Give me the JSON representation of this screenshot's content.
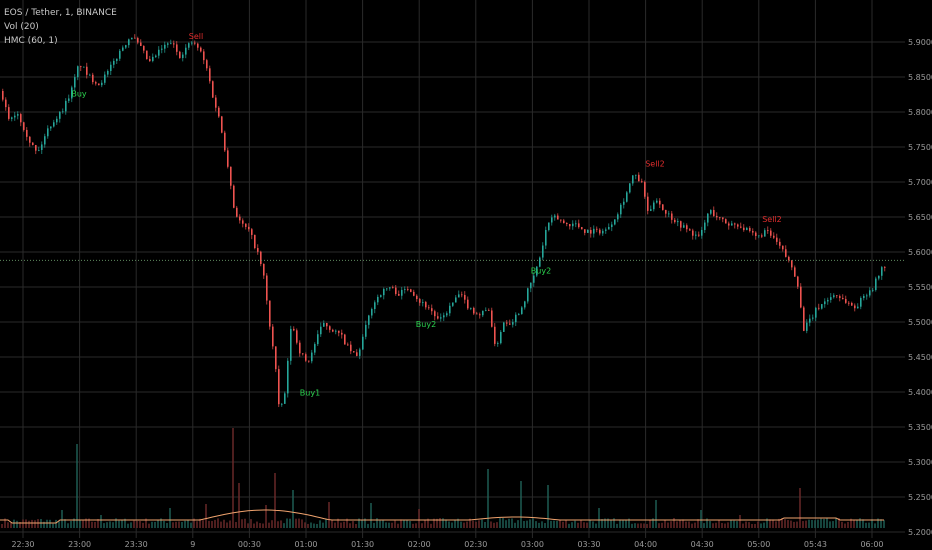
{
  "legend": {
    "symbol": "EOS / Tether, 1, BINANCE",
    "volume": "Vol (20)",
    "indicator": "HMC (60, 1)"
  },
  "colors": {
    "background": "#000000",
    "grid": "#2a2a2a",
    "up": "#26a69a",
    "down": "#ef5350",
    "buy_label": "#2bd24f",
    "sell_label": "#e12d2d",
    "vol_ma": "#f0a36e",
    "current_price_line": "#5f8a5f",
    "axis_text": "#9a9a9a"
  },
  "chart_data": {
    "type": "candlestick",
    "title": "",
    "y_ticks": [
      "5.9000",
      "5.8500",
      "5.8000",
      "5.7500",
      "5.7000",
      "5.6500",
      "5.6000",
      "5.5500",
      "5.5000",
      "5.4500",
      "5.4000",
      "5.3500",
      "5.3000",
      "5.2500",
      "5.2000"
    ],
    "ylim": [
      5.2,
      5.91
    ],
    "x_ticks": [
      "22:30",
      "23:00",
      "23:30",
      "9",
      "00:30",
      "01:00",
      "01:30",
      "02:00",
      "02:30",
      "03:00",
      "03:30",
      "04:00",
      "04:30",
      "05:00",
      "05:43",
      "06:00"
    ],
    "current_price": 5.588,
    "price_path": [
      [
        0,
        5.83
      ],
      [
        10,
        5.79
      ],
      [
        18,
        5.8
      ],
      [
        30,
        5.76
      ],
      [
        38,
        5.74
      ],
      [
        50,
        5.78
      ],
      [
        62,
        5.8
      ],
      [
        72,
        5.83
      ],
      [
        80,
        5.87
      ],
      [
        90,
        5.85
      ],
      [
        100,
        5.84
      ],
      [
        110,
        5.86
      ],
      [
        122,
        5.89
      ],
      [
        132,
        5.91
      ],
      [
        142,
        5.89
      ],
      [
        150,
        5.87
      ],
      [
        162,
        5.89
      ],
      [
        172,
        5.9
      ],
      [
        180,
        5.88
      ],
      [
        192,
        5.9
      ],
      [
        200,
        5.89
      ],
      [
        208,
        5.86
      ],
      [
        214,
        5.82
      ],
      [
        220,
        5.79
      ],
      [
        228,
        5.73
      ],
      [
        235,
        5.66
      ],
      [
        242,
        5.64
      ],
      [
        250,
        5.63
      ],
      [
        258,
        5.6
      ],
      [
        264,
        5.57
      ],
      [
        270,
        5.5
      ],
      [
        276,
        5.44
      ],
      [
        280,
        5.37
      ],
      [
        286,
        5.4
      ],
      [
        292,
        5.5
      ],
      [
        300,
        5.46
      ],
      [
        308,
        5.44
      ],
      [
        316,
        5.47
      ],
      [
        324,
        5.5
      ],
      [
        332,
        5.49
      ],
      [
        342,
        5.48
      ],
      [
        350,
        5.46
      ],
      [
        358,
        5.45
      ],
      [
        366,
        5.49
      ],
      [
        372,
        5.52
      ],
      [
        380,
        5.54
      ],
      [
        390,
        5.55
      ],
      [
        400,
        5.54
      ],
      [
        410,
        5.55
      ],
      [
        420,
        5.53
      ],
      [
        430,
        5.52
      ],
      [
        440,
        5.5
      ],
      [
        450,
        5.52
      ],
      [
        460,
        5.54
      ],
      [
        470,
        5.52
      ],
      [
        480,
        5.51
      ],
      [
        490,
        5.52
      ],
      [
        496,
        5.46
      ],
      [
        504,
        5.5
      ],
      [
        512,
        5.5
      ],
      [
        522,
        5.52
      ],
      [
        530,
        5.55
      ],
      [
        536,
        5.57
      ],
      [
        542,
        5.6
      ],
      [
        548,
        5.64
      ],
      [
        556,
        5.65
      ],
      [
        566,
        5.64
      ],
      [
        576,
        5.64
      ],
      [
        586,
        5.63
      ],
      [
        596,
        5.63
      ],
      [
        606,
        5.63
      ],
      [
        616,
        5.65
      ],
      [
        626,
        5.68
      ],
      [
        634,
        5.71
      ],
      [
        642,
        5.7
      ],
      [
        650,
        5.65
      ],
      [
        656,
        5.68
      ],
      [
        664,
        5.66
      ],
      [
        672,
        5.65
      ],
      [
        680,
        5.64
      ],
      [
        690,
        5.63
      ],
      [
        700,
        5.62
      ],
      [
        710,
        5.66
      ],
      [
        718,
        5.65
      ],
      [
        728,
        5.64
      ],
      [
        738,
        5.64
      ],
      [
        748,
        5.63
      ],
      [
        758,
        5.62
      ],
      [
        766,
        5.63
      ],
      [
        774,
        5.62
      ],
      [
        784,
        5.6
      ],
      [
        792,
        5.58
      ],
      [
        798,
        5.56
      ],
      [
        804,
        5.49
      ],
      [
        810,
        5.5
      ],
      [
        818,
        5.52
      ],
      [
        826,
        5.53
      ],
      [
        836,
        5.54
      ],
      [
        846,
        5.53
      ],
      [
        856,
        5.52
      ],
      [
        866,
        5.54
      ],
      [
        874,
        5.55
      ],
      [
        880,
        5.57
      ],
      [
        884,
        5.58
      ]
    ],
    "volume_peaks": [
      [
        24,
        0.05
      ],
      [
        40,
        0.09
      ],
      [
        62,
        0.18
      ],
      [
        76,
        0.84
      ],
      [
        100,
        0.13
      ],
      [
        140,
        0.07
      ],
      [
        170,
        0.2
      ],
      [
        205,
        0.24
      ],
      [
        232,
        1.0
      ],
      [
        238,
        0.45
      ],
      [
        266,
        0.23
      ],
      [
        275,
        0.55
      ],
      [
        292,
        0.38
      ],
      [
        330,
        0.26
      ],
      [
        372,
        0.25
      ],
      [
        420,
        0.19
      ],
      [
        488,
        0.59
      ],
      [
        520,
        0.47
      ],
      [
        548,
        0.43
      ],
      [
        600,
        0.2
      ],
      [
        655,
        0.28
      ],
      [
        700,
        0.18
      ],
      [
        740,
        0.13
      ],
      [
        800,
        0.4
      ],
      [
        860,
        0.09
      ]
    ],
    "signals": [
      {
        "text": "Sell",
        "type": "sell",
        "x": 196,
        "price": 5.904
      },
      {
        "text": "Buy",
        "type": "buy",
        "x": 79,
        "price": 5.822
      },
      {
        "text": "Sell2",
        "type": "sell",
        "x": 655,
        "price": 5.722
      },
      {
        "text": "Sell2",
        "type": "sell",
        "x": 772,
        "price": 5.643
      },
      {
        "text": "Buy2",
        "type": "buy",
        "x": 541,
        "price": 5.569
      },
      {
        "text": "Buy2",
        "type": "buy",
        "x": 426,
        "price": 5.493
      },
      {
        "text": "Buy1",
        "type": "buy",
        "x": 310,
        "price": 5.395
      }
    ]
  }
}
